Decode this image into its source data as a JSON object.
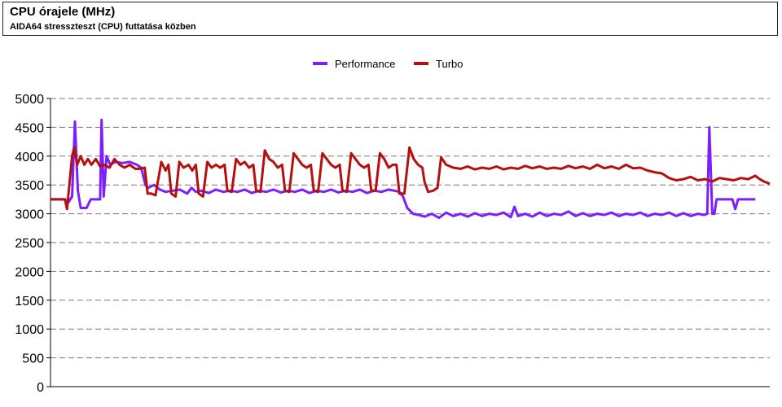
{
  "header": {
    "title": "CPU órajele (MHz)",
    "subtitle": "AIDA64 stresszteszt (CPU) futtatása közben"
  },
  "chart_data": {
    "type": "line",
    "title": "CPU órajele (MHz)",
    "subtitle": "AIDA64 stresszteszt (CPU) futtatása közben",
    "xlabel": "",
    "ylabel": "",
    "ylim": [
      0,
      5000
    ],
    "yticks": [
      0,
      500,
      1000,
      1500,
      2000,
      2500,
      3000,
      3500,
      4000,
      4500,
      5000
    ],
    "xlim": [
      0,
      100
    ],
    "grid": "horizontal-dashed",
    "legend": "top-center",
    "series": [
      {
        "name": "Performance",
        "color": "#7b1fff",
        "points": [
          [
            0,
            3250
          ],
          [
            2,
            3250
          ],
          [
            2.5,
            3200
          ],
          [
            3,
            3300
          ],
          [
            3.4,
            4600
          ],
          [
            3.8,
            3400
          ],
          [
            4.2,
            3100
          ],
          [
            5,
            3100
          ],
          [
            5.6,
            3250
          ],
          [
            6.5,
            3250
          ],
          [
            6.9,
            3250
          ],
          [
            7.1,
            4630
          ],
          [
            7.4,
            3300
          ],
          [
            7.8,
            4000
          ],
          [
            8.3,
            3850
          ],
          [
            9,
            3900
          ],
          [
            10,
            3880
          ],
          [
            11,
            3900
          ],
          [
            12,
            3850
          ],
          [
            12.6,
            3800
          ],
          [
            13.2,
            3500
          ],
          [
            13.6,
            3450
          ],
          [
            14.4,
            3500
          ],
          [
            15.2,
            3420
          ],
          [
            16,
            3380
          ],
          [
            17,
            3400
          ],
          [
            18,
            3420
          ],
          [
            19,
            3350
          ],
          [
            19.6,
            3450
          ],
          [
            20.2,
            3380
          ],
          [
            21,
            3400
          ],
          [
            22,
            3360
          ],
          [
            23,
            3420
          ],
          [
            24,
            3380
          ],
          [
            25,
            3400
          ],
          [
            26,
            3380
          ],
          [
            27,
            3420
          ],
          [
            28,
            3360
          ],
          [
            29,
            3400
          ],
          [
            30,
            3380
          ],
          [
            31,
            3420
          ],
          [
            32,
            3370
          ],
          [
            33,
            3400
          ],
          [
            34,
            3380
          ],
          [
            35,
            3420
          ],
          [
            36,
            3360
          ],
          [
            37,
            3400
          ],
          [
            38,
            3380
          ],
          [
            39,
            3420
          ],
          [
            40,
            3370
          ],
          [
            41,
            3400
          ],
          [
            42,
            3380
          ],
          [
            43,
            3420
          ],
          [
            44,
            3360
          ],
          [
            45,
            3400
          ],
          [
            46,
            3380
          ],
          [
            47,
            3420
          ],
          [
            47.8,
            3400
          ],
          [
            48.5,
            3380
          ],
          [
            49,
            3300
          ],
          [
            49.6,
            3100
          ],
          [
            50.4,
            3000
          ],
          [
            51.2,
            2980
          ],
          [
            52,
            2950
          ],
          [
            53,
            3000
          ],
          [
            54,
            2930
          ],
          [
            55,
            3020
          ],
          [
            56,
            2960
          ],
          [
            57,
            3000
          ],
          [
            58,
            2950
          ],
          [
            59,
            3010
          ],
          [
            60,
            2960
          ],
          [
            61,
            3000
          ],
          [
            62,
            2980
          ],
          [
            63,
            3020
          ],
          [
            64,
            2940
          ],
          [
            64.5,
            3120
          ],
          [
            65,
            2960
          ],
          [
            66,
            3000
          ],
          [
            67,
            2950
          ],
          [
            68,
            3020
          ],
          [
            69,
            2960
          ],
          [
            70,
            3000
          ],
          [
            71,
            2980
          ],
          [
            72,
            3040
          ],
          [
            73,
            2960
          ],
          [
            74,
            3010
          ],
          [
            75,
            2960
          ],
          [
            76,
            3000
          ],
          [
            77,
            2980
          ],
          [
            78,
            3020
          ],
          [
            79,
            2960
          ],
          [
            80,
            3000
          ],
          [
            81,
            2980
          ],
          [
            82,
            3020
          ],
          [
            83,
            2960
          ],
          [
            84,
            3000
          ],
          [
            85,
            2980
          ],
          [
            86,
            3020
          ],
          [
            87,
            2960
          ],
          [
            88,
            3010
          ],
          [
            89,
            2960
          ],
          [
            90,
            3000
          ],
          [
            90.9,
            2980
          ],
          [
            91.3,
            3000
          ],
          [
            91.6,
            4500
          ],
          [
            92,
            3000
          ],
          [
            92.3,
            3000
          ],
          [
            92.6,
            3250
          ],
          [
            94,
            3250
          ],
          [
            94.8,
            3250
          ],
          [
            95.2,
            3080
          ],
          [
            95.6,
            3250
          ],
          [
            97,
            3250
          ],
          [
            98,
            3250
          ]
        ]
      },
      {
        "name": "Turbo",
        "color": "#b51010",
        "points": [
          [
            0,
            3250
          ],
          [
            1,
            3250
          ],
          [
            2,
            3250
          ],
          [
            2.3,
            3080
          ],
          [
            2.7,
            3600
          ],
          [
            3,
            4000
          ],
          [
            3.3,
            4150
          ],
          [
            3.7,
            3850
          ],
          [
            4.2,
            4000
          ],
          [
            4.7,
            3850
          ],
          [
            5.2,
            3950
          ],
          [
            5.7,
            3850
          ],
          [
            6.3,
            3950
          ],
          [
            6.9,
            3820
          ],
          [
            7.5,
            3850
          ],
          [
            8.2,
            3800
          ],
          [
            8.9,
            3950
          ],
          [
            9.6,
            3850
          ],
          [
            10.3,
            3800
          ],
          [
            11,
            3850
          ],
          [
            11.8,
            3780
          ],
          [
            12.5,
            3780
          ],
          [
            13.1,
            3800
          ],
          [
            13.5,
            3350
          ],
          [
            14,
            3350
          ],
          [
            14.6,
            3320
          ],
          [
            15.4,
            3900
          ],
          [
            16,
            3750
          ],
          [
            16.4,
            3850
          ],
          [
            16.8,
            3350
          ],
          [
            17.4,
            3300
          ],
          [
            17.9,
            3900
          ],
          [
            18.5,
            3800
          ],
          [
            19.2,
            3850
          ],
          [
            19.7,
            3750
          ],
          [
            20.2,
            3850
          ],
          [
            20.6,
            3350
          ],
          [
            21.2,
            3300
          ],
          [
            21.8,
            3900
          ],
          [
            22.4,
            3800
          ],
          [
            23,
            3850
          ],
          [
            23.6,
            3800
          ],
          [
            24.2,
            3850
          ],
          [
            24.6,
            3400
          ],
          [
            25.2,
            3380
          ],
          [
            25.8,
            3950
          ],
          [
            26.4,
            3850
          ],
          [
            27,
            3900
          ],
          [
            27.6,
            3800
          ],
          [
            28.2,
            3850
          ],
          [
            28.6,
            3400
          ],
          [
            29.2,
            3380
          ],
          [
            29.8,
            4100
          ],
          [
            30.4,
            3950
          ],
          [
            31,
            3900
          ],
          [
            31.6,
            3800
          ],
          [
            32.2,
            3850
          ],
          [
            32.6,
            3400
          ],
          [
            33.2,
            3380
          ],
          [
            33.8,
            4050
          ],
          [
            34.4,
            3950
          ],
          [
            35,
            3850
          ],
          [
            35.6,
            3800
          ],
          [
            36.2,
            3850
          ],
          [
            36.6,
            3400
          ],
          [
            37.2,
            3380
          ],
          [
            37.8,
            4050
          ],
          [
            38.4,
            3950
          ],
          [
            39,
            3850
          ],
          [
            39.6,
            3800
          ],
          [
            40.2,
            3850
          ],
          [
            40.6,
            3400
          ],
          [
            41.2,
            3380
          ],
          [
            41.8,
            4050
          ],
          [
            42.4,
            3950
          ],
          [
            43,
            3850
          ],
          [
            43.6,
            3800
          ],
          [
            44.2,
            3850
          ],
          [
            44.6,
            3400
          ],
          [
            45.2,
            3400
          ],
          [
            45.8,
            4050
          ],
          [
            46.4,
            3950
          ],
          [
            47,
            3800
          ],
          [
            47.6,
            3850
          ],
          [
            48.1,
            3850
          ],
          [
            48.5,
            3350
          ],
          [
            49.2,
            3350
          ],
          [
            49.9,
            4150
          ],
          [
            50.5,
            3950
          ],
          [
            51.1,
            3850
          ],
          [
            51.7,
            3800
          ],
          [
            52,
            3550
          ],
          [
            52.5,
            3380
          ],
          [
            53.2,
            3400
          ],
          [
            53.8,
            3450
          ],
          [
            54.3,
            3980
          ],
          [
            55,
            3850
          ],
          [
            56,
            3800
          ],
          [
            57,
            3780
          ],
          [
            58,
            3820
          ],
          [
            59,
            3770
          ],
          [
            60,
            3800
          ],
          [
            61,
            3780
          ],
          [
            62,
            3820
          ],
          [
            63,
            3770
          ],
          [
            64,
            3800
          ],
          [
            65,
            3780
          ],
          [
            66,
            3830
          ],
          [
            67,
            3790
          ],
          [
            68,
            3820
          ],
          [
            69,
            3780
          ],
          [
            70,
            3800
          ],
          [
            71,
            3780
          ],
          [
            72,
            3830
          ],
          [
            73,
            3790
          ],
          [
            74,
            3820
          ],
          [
            75,
            3780
          ],
          [
            76,
            3850
          ],
          [
            77,
            3790
          ],
          [
            78,
            3820
          ],
          [
            79,
            3780
          ],
          [
            80,
            3850
          ],
          [
            81,
            3790
          ],
          [
            82,
            3800
          ],
          [
            83,
            3750
          ],
          [
            84,
            3720
          ],
          [
            85,
            3700
          ],
          [
            86,
            3620
          ],
          [
            87,
            3580
          ],
          [
            88,
            3600
          ],
          [
            89,
            3640
          ],
          [
            90,
            3580
          ],
          [
            91,
            3600
          ],
          [
            92,
            3560
          ],
          [
            93,
            3620
          ],
          [
            94,
            3600
          ],
          [
            95,
            3580
          ],
          [
            96,
            3620
          ],
          [
            97,
            3600
          ],
          [
            98,
            3660
          ],
          [
            98.6,
            3600
          ],
          [
            99.2,
            3560
          ],
          [
            100,
            3520
          ]
        ]
      }
    ]
  }
}
